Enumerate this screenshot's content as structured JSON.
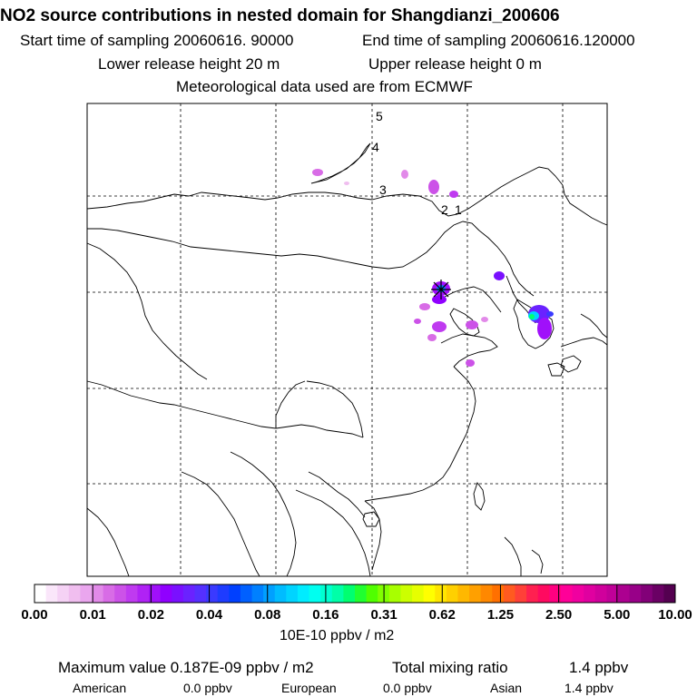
{
  "header": {
    "title": "NO2 source contributions in nested domain for Shangdianzi_200606",
    "start": "Start time of sampling 20060616. 90000",
    "end": "End time of sampling 20060616.120000",
    "lower": "Lower release height   20 m",
    "upper": "Upper release height    0 m",
    "met": "Meteorological data used are from ECMWF"
  },
  "map": {
    "contour_labels": [
      "5",
      "4",
      "3",
      "2",
      "1"
    ]
  },
  "colorbar": {
    "ticks": [
      "0.00",
      "0.01",
      "0.02",
      "0.04",
      "0.08",
      "0.16",
      "0.31",
      "0.62",
      "1.25",
      "2.50",
      "5.00",
      "10.00"
    ],
    "colors": [
      "#ffffff",
      "#fae6fa",
      "#f5d2f5",
      "#f0beef",
      "#eaa6ee",
      "#e28ae9",
      "#d86ce6",
      "#cc52e8",
      "#bf3af0",
      "#b022f5",
      "#a010fa",
      "#9000ff",
      "#7a10ff",
      "#6a22ff",
      "#5530ff",
      "#3a3aff",
      "#1e3cff",
      "#0040ff",
      "#0060ff",
      "#0080ff",
      "#00a0ff",
      "#00bcff",
      "#00d4ff",
      "#00ecff",
      "#00fff0",
      "#00ffd0",
      "#00ffa8",
      "#00ff70",
      "#20ff30",
      "#50ff00",
      "#80ff00",
      "#a8ff00",
      "#ccff00",
      "#e6ff00",
      "#ffff00",
      "#ffe600",
      "#ffd000",
      "#ffb800",
      "#ffa000",
      "#ff8800",
      "#ff7000",
      "#ff5a20",
      "#ff4038",
      "#ff2050",
      "#ff0a60",
      "#ff0080",
      "#ff0098",
      "#f000a0",
      "#e000a0",
      "#d0009c",
      "#c00098",
      "#ac0090",
      "#980088",
      "#820078",
      "#6a0064",
      "#540050"
    ],
    "units": "10E-10 ppbv / m2"
  },
  "footer": {
    "max": "Maximum value  0.187E-09 ppbv / m2",
    "total_label": "Total mixing ratio",
    "total_value": "1.4 ppbv",
    "american_label": "American",
    "american_value": "0.0 ppbv",
    "european_label": "European",
    "european_value": "0.0 ppbv",
    "asian_label": "Asian",
    "asian_value": "1.4 ppbv"
  }
}
